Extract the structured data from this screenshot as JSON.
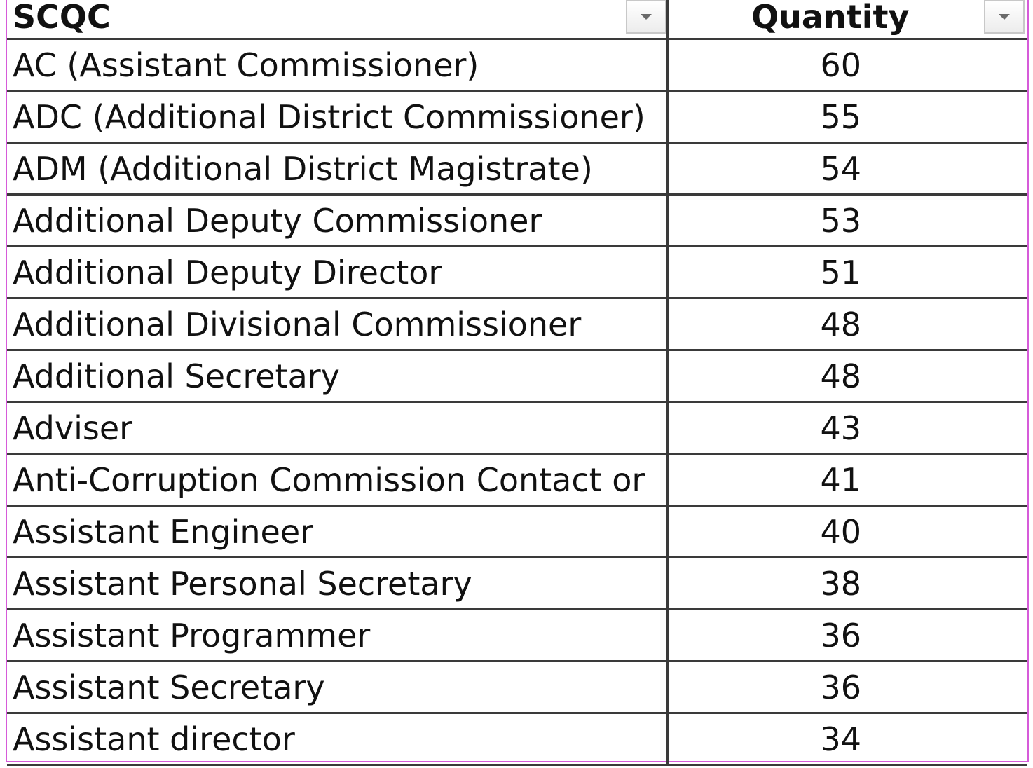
{
  "table": {
    "headers": {
      "name": "SCQC",
      "quantity": "Quantity"
    },
    "rows": [
      {
        "name": "AC (Assistant Commissioner)",
        "quantity": "60"
      },
      {
        "name": "ADC (Additional District Commissioner)",
        "quantity": "55"
      },
      {
        "name": "ADM (Additional District Magistrate)",
        "quantity": "54"
      },
      {
        "name": "Additional Deputy Commissioner",
        "quantity": "53"
      },
      {
        "name": "Additional Deputy Director",
        "quantity": "51"
      },
      {
        "name": "Additional Divisional Commissioner",
        "quantity": "48"
      },
      {
        "name": "Additional Secretary",
        "quantity": "48"
      },
      {
        "name": "Adviser",
        "quantity": "43"
      },
      {
        "name": "Anti-Corruption Commission Contact or ",
        "quantity": "41"
      },
      {
        "name": "Assistant Engineer",
        "quantity": "40"
      },
      {
        "name": "Assistant Personal Secretary",
        "quantity": "38"
      },
      {
        "name": "Assistant Programmer",
        "quantity": "36"
      },
      {
        "name": "Assistant Secretary",
        "quantity": "36"
      },
      {
        "name": "Assistant director",
        "quantity": "34"
      }
    ]
  },
  "icons": {
    "filter": "filter-dropdown-icon"
  },
  "colors": {
    "selection_border": "#d65bd9",
    "grid_line": "#3a3a3a"
  }
}
